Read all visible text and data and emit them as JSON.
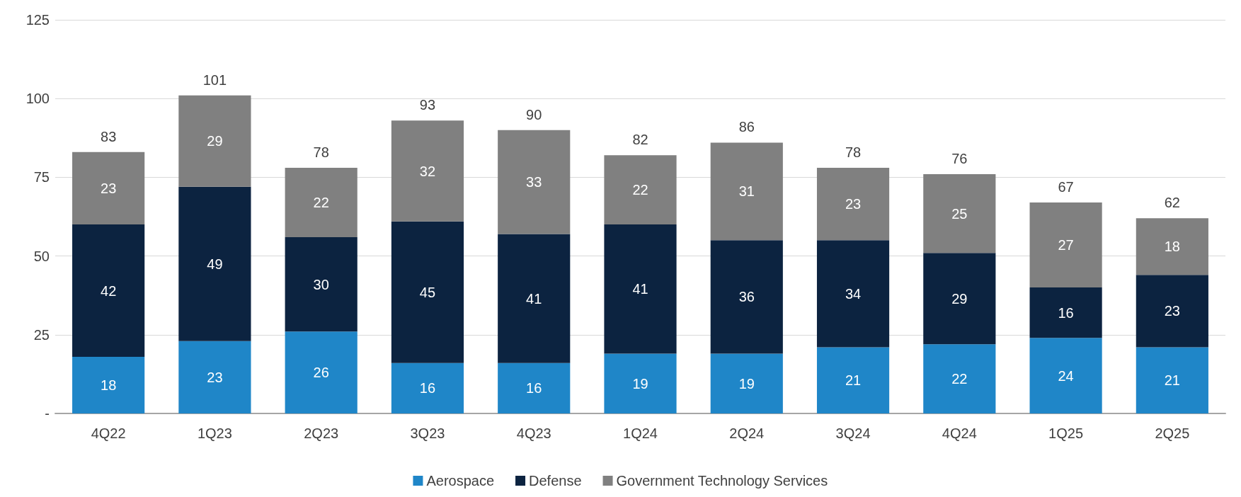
{
  "chart_data": {
    "type": "bar",
    "stacked": true,
    "categories": [
      "4Q22",
      "1Q23",
      "2Q23",
      "3Q23",
      "4Q23",
      "1Q24",
      "2Q24",
      "3Q24",
      "4Q24",
      "1Q25",
      "2Q25"
    ],
    "series": [
      {
        "name": "Aerospace",
        "color": "#1f86c8",
        "values": [
          18,
          23,
          26,
          16,
          16,
          19,
          19,
          21,
          22,
          24,
          21
        ]
      },
      {
        "name": "Defense",
        "color": "#0c2340",
        "values": [
          42,
          49,
          30,
          45,
          41,
          41,
          36,
          34,
          29,
          16,
          23
        ]
      },
      {
        "name": "Government Technology Services",
        "color": "#808080",
        "values": [
          23,
          29,
          22,
          32,
          33,
          22,
          31,
          23,
          25,
          27,
          18
        ]
      }
    ],
    "ylim": [
      0,
      125
    ],
    "yticks": [
      {
        "value": 0,
        "label": "-"
      },
      25,
      50,
      75,
      100,
      125
    ],
    "grid": "y",
    "legend": "bottom",
    "data_labels": true,
    "totals": [
      "83",
      "101",
      "78",
      "93",
      "90",
      "82",
      "86",
      "78",
      "76",
      "67",
      "62"
    ]
  }
}
